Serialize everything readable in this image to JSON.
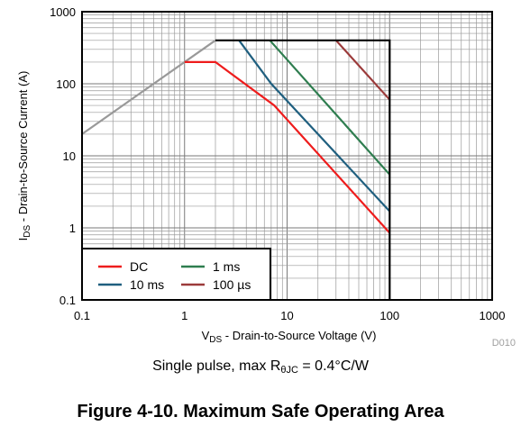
{
  "chart_data": {
    "type": "line",
    "x_scale": "log",
    "y_scale": "log",
    "xlim": [
      0.1,
      1000
    ],
    "ylim": [
      0.1,
      1000
    ],
    "x_ticks": [
      "0.1",
      "1",
      "10",
      "100",
      "1000"
    ],
    "y_ticks": [
      "0.1",
      "1",
      "10",
      "100",
      "1000"
    ],
    "xlabel": {
      "symbol": "V",
      "subscript": "DS",
      "text": " - Drain-to-Source Voltage (V)"
    },
    "ylabel": {
      "symbol": "I",
      "subscript": "DS",
      "text": " - Drain-to-Source Current (A)"
    },
    "grid": true,
    "legend_position": "bottom-left",
    "boundary": {
      "name": "",
      "color": "#000000",
      "points": [
        [
          2,
          400
        ],
        [
          100,
          400
        ],
        [
          100,
          0.1
        ]
      ]
    },
    "rds_limit": {
      "name": "",
      "color": "#999999",
      "points": [
        [
          0.1,
          20
        ],
        [
          2,
          400
        ]
      ]
    },
    "series": [
      {
        "name": "DC",
        "color": "#ee1c1c",
        "points": [
          [
            1,
            200
          ],
          [
            2,
            200
          ],
          [
            7.5,
            50
          ],
          [
            100,
            0.85
          ]
        ]
      },
      {
        "name": "10 ms",
        "color": "#1f5f7f",
        "points": [
          [
            3.4,
            400
          ],
          [
            7,
            100
          ],
          [
            100,
            1.7
          ]
        ]
      },
      {
        "name": "1 ms",
        "color": "#2e7d4f",
        "points": [
          [
            6.8,
            400
          ],
          [
            100,
            5.5
          ]
        ]
      },
      {
        "name": "100 µs",
        "color": "#9b3a3a",
        "points": [
          [
            30,
            400
          ],
          [
            100,
            60
          ]
        ]
      }
    ],
    "figure_id": "D010"
  },
  "note": {
    "text_before": "Single pulse, max R",
    "subscript": "θJC",
    "text_after": " = 0.4°C/W"
  },
  "figure_title": "Figure 4-10. Maximum Safe Operating Area"
}
